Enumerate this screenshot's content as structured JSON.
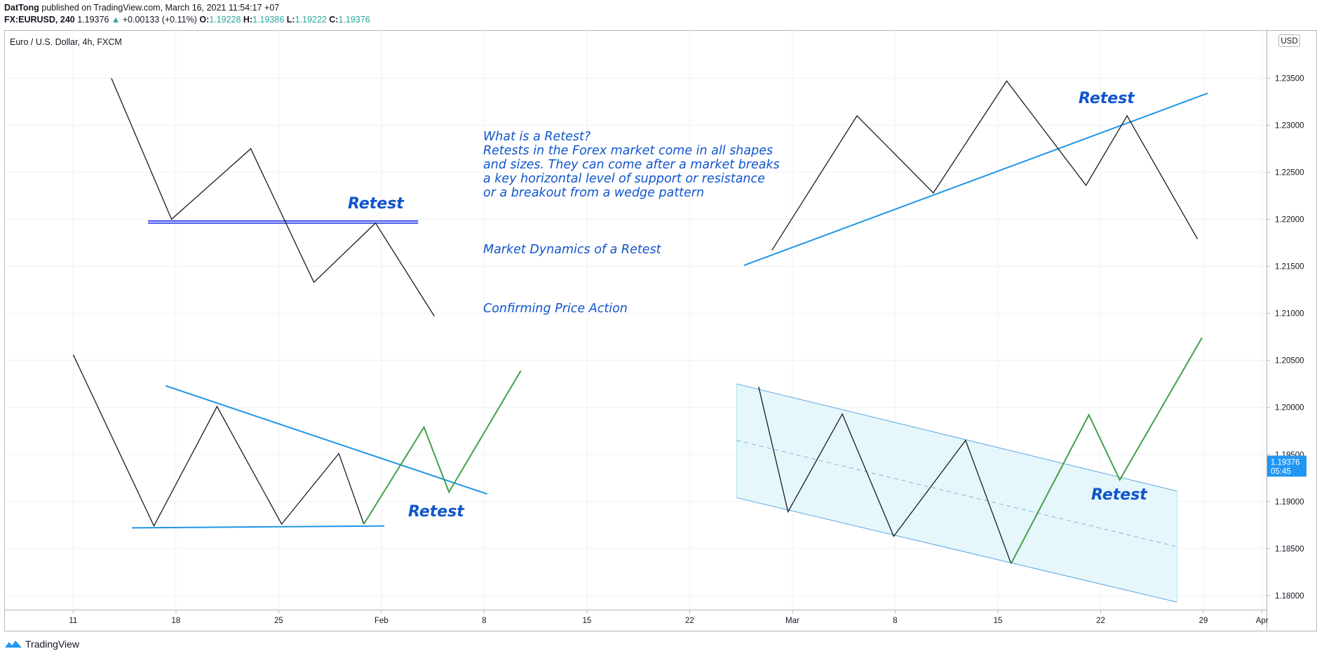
{
  "header": {
    "author": "DatTong",
    "published": "published on TradingView.com, March 16, 2021 11:54:17 +07",
    "symbol": "FX:EURUSD, 240",
    "last": "1.19376",
    "change": "+0.00133 (+0.11%)",
    "o_label": "O:",
    "o": "1.19228",
    "h_label": "H:",
    "h": "1.19386",
    "l_label": "L:",
    "l": "1.19222",
    "c_label": "C:",
    "c": "1.19376"
  },
  "instrument_title": "Euro / U.S. Dollar, 4h, FXCM",
  "currency_badge": "USD",
  "price_tag": {
    "price": "1.19376",
    "countdown": "05:45",
    "value": 1.19376
  },
  "footer": {
    "brand": "TradingView"
  },
  "colors": {
    "accent_blue": "#1f96e6",
    "green": "#43a047",
    "text_blue": "#1155cc",
    "channel_fill": "#e6f7fb",
    "price_tag": "#2196f3"
  },
  "annotations": {
    "what_title": "What is a Retest?",
    "what_lines": [
      "Retests in the Forex market come in all shapes",
      "and sizes. They can come after a market breaks",
      "a key horizontal level of support or resistance",
      "or a breakout from a wedge pattern"
    ],
    "dynamics": "Market Dynamics of a Retest",
    "confirming": "Confirming Price Action",
    "retest_labels": [
      "Retest",
      "Retest",
      "Retest",
      "Retest"
    ]
  },
  "chart_data": {
    "type": "line",
    "title": "Euro / U.S. Dollar, 4h, FXCM",
    "x_axis": {
      "ticks": [
        {
          "label": "11",
          "day": 0
        },
        {
          "label": "18",
          "day": 7
        },
        {
          "label": "25",
          "day": 14
        },
        {
          "label": "Feb",
          "day": 21
        },
        {
          "label": "8",
          "day": 28
        },
        {
          "label": "15",
          "day": 35
        },
        {
          "label": "22",
          "day": 42
        },
        {
          "label": "Mar",
          "day": 49
        },
        {
          "label": "8",
          "day": 56
        },
        {
          "label": "15",
          "day": 63
        },
        {
          "label": "22",
          "day": 70
        },
        {
          "label": "29",
          "day": 77
        },
        {
          "label": "Apr",
          "day": 81
        }
      ],
      "range_days": [
        -4.7,
        81.3
      ]
    },
    "y_axis": {
      "ticks": [
        "1.23500",
        "1.23000",
        "1.22500",
        "1.22000",
        "1.21500",
        "1.21000",
        "1.20500",
        "1.20000",
        "1.19500",
        "1.19000",
        "1.18500",
        "1.18000"
      ],
      "range": [
        1.1785,
        1.2401
      ]
    },
    "grid": true,
    "series": [
      {
        "style": "black",
        "points": [
          [
            2.6,
            1.235
          ],
          [
            6.7,
            1.22
          ],
          [
            12.1,
            1.2275
          ],
          [
            16.4,
            1.2133
          ],
          [
            20.6,
            1.2196
          ],
          [
            24.6,
            1.2097
          ]
        ]
      },
      {
        "style": "black",
        "points": [
          [
            47.6,
            1.2167
          ],
          [
            53.4,
            1.231
          ],
          [
            58.6,
            1.2228
          ],
          [
            63.6,
            1.2347
          ],
          [
            69.0,
            1.2236
          ],
          [
            71.8,
            1.231
          ],
          [
            76.6,
            1.2179
          ]
        ]
      },
      {
        "style": "black",
        "points": [
          [
            0.0,
            1.2056
          ],
          [
            5.5,
            1.1874
          ],
          [
            9.8,
            1.2001
          ],
          [
            14.2,
            1.1876
          ],
          [
            18.1,
            1.1951
          ],
          [
            19.8,
            1.1876
          ]
        ]
      },
      {
        "style": "green",
        "points": [
          [
            19.8,
            1.1876
          ],
          [
            23.9,
            1.1979
          ],
          [
            25.6,
            1.191
          ],
          [
            30.5,
            1.2039
          ]
        ]
      },
      {
        "style": "black",
        "points": [
          [
            46.7,
            1.2022
          ],
          [
            48.7,
            1.1889
          ],
          [
            52.4,
            1.1993
          ],
          [
            55.9,
            1.1863
          ],
          [
            60.8,
            1.1965
          ],
          [
            63.9,
            1.1834
          ]
        ]
      },
      {
        "style": "green",
        "points": [
          [
            63.9,
            1.1834
          ],
          [
            69.2,
            1.1992
          ],
          [
            71.3,
            1.1923
          ],
          [
            76.9,
            1.2074
          ]
        ]
      }
    ],
    "trendlines": [
      {
        "style": "blue-thick",
        "points": [
          [
            13.0,
            1.2197
          ],
          [
            5.1,
            1.2197
          ],
          [
            23.5,
            1.2197
          ]
        ]
      },
      {
        "style": "blue",
        "points": [
          [
            45.7,
            1.2151
          ],
          [
            77.3,
            1.2334
          ]
        ]
      },
      {
        "style": "blue",
        "points": [
          [
            6.3,
            1.2023
          ],
          [
            28.2,
            1.1908
          ]
        ]
      },
      {
        "style": "blue",
        "points": [
          [
            4.0,
            1.1872
          ],
          [
            21.2,
            1.1874
          ]
        ]
      },
      {
        "style": "channel-upper",
        "points": [
          [
            45.2,
            1.2025
          ],
          [
            75.2,
            1.1911
          ]
        ]
      },
      {
        "style": "channel-mid",
        "points": [
          [
            45.2,
            1.1965
          ],
          [
            75.2,
            1.1852
          ]
        ]
      },
      {
        "style": "channel-lower",
        "points": [
          [
            45.2,
            1.1904
          ],
          [
            75.2,
            1.1793
          ]
        ]
      }
    ]
  }
}
